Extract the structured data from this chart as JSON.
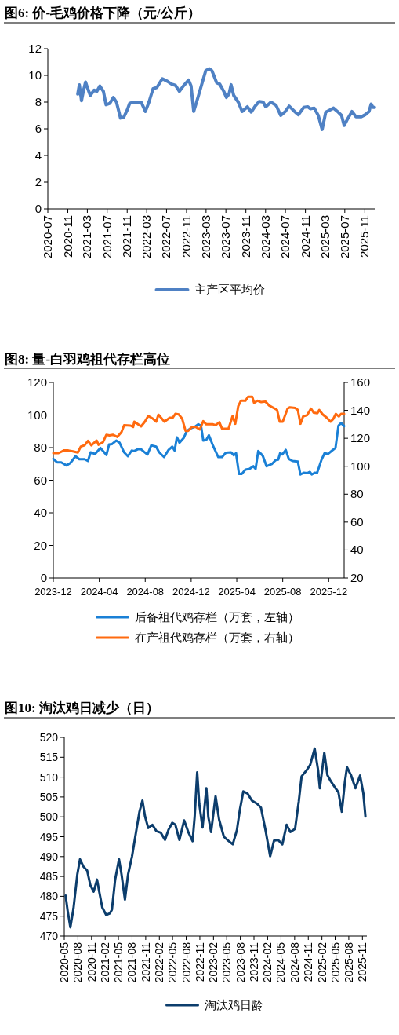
{
  "chart_data": [
    {
      "type": "line",
      "title": "图6: 价-毛鸡价格下降（元/公斤）",
      "legend": "bottom",
      "xlim": [
        "2020-07",
        "2026-01"
      ],
      "ylim": [
        0,
        12
      ],
      "yticks": [
        0,
        2,
        4,
        6,
        8,
        10,
        12
      ],
      "xticks": [
        "2020-07",
        "2020-11",
        "2021-03",
        "2021-07",
        "2021-11",
        "2022-03",
        "2022-07",
        "2022-11",
        "2023-03",
        "2023-07",
        "2023-11",
        "2024-03",
        "2024-07",
        "2024-11",
        "2025-03",
        "2025-07",
        "2025-11"
      ],
      "series": [
        {
          "name": "主产区平均价",
          "color": "#4f81c4",
          "x": [
            "2021-01-01",
            "2021-01-11",
            "2021-01-24",
            "2021-02-06",
            "2021-02-18",
            "2021-03-01",
            "2021-03-19",
            "2021-04-12",
            "2021-04-28",
            "2021-05-17",
            "2021-06-08",
            "2021-06-24",
            "2021-07-17",
            "2021-08-08",
            "2021-08-27",
            "2021-09-21",
            "2021-10-10",
            "2021-11-01",
            "2021-11-16",
            "2021-12-10",
            "2022-01-28",
            "2022-02-21",
            "2022-03-15",
            "2022-04-09",
            "2022-05-03",
            "2022-06-05",
            "2022-07-07",
            "2022-08-01",
            "2022-08-25",
            "2022-09-18",
            "2022-10-12",
            "2022-11-14",
            "2022-11-29",
            "2022-12-15",
            "2023-01-09",
            "2023-02-03",
            "2023-02-27",
            "2023-03-21",
            "2023-04-06",
            "2023-05-05",
            "2023-05-24",
            "2023-06-18",
            "2023-07-04",
            "2023-07-20",
            "2023-08-02",
            "2023-08-18",
            "2023-09-15",
            "2023-10-09",
            "2023-11-10",
            "2023-12-04",
            "2023-12-28",
            "2024-01-22",
            "2024-02-15",
            "2024-03-02",
            "2024-04-03",
            "2024-05-05",
            "2024-06-02",
            "2024-06-30",
            "2024-07-24",
            "2024-08-26",
            "2024-09-19",
            "2024-10-21",
            "2024-11-15",
            "2024-12-01",
            "2024-12-25",
            "2025-01-19",
            "2025-02-12",
            "2025-03-06",
            "2025-03-30",
            "2025-04-23",
            "2025-05-17",
            "2025-06-11",
            "2025-06-27",
            "2025-07-21",
            "2025-08-14",
            "2025-09-08",
            "2025-10-10",
            "2025-11-03",
            "2025-11-27",
            "2025-12-10",
            "2025-12-21",
            "2025-12-31"
          ],
          "values": [
            8.6,
            9.3,
            8.1,
            8.9,
            9.5,
            9.1,
            8.5,
            8.9,
            8.8,
            9.2,
            8.8,
            7.8,
            7.9,
            8.35,
            8.0,
            6.8,
            6.85,
            7.4,
            7.9,
            8.0,
            7.95,
            7.3,
            8.0,
            9.0,
            9.1,
            9.75,
            9.55,
            9.35,
            9.25,
            8.8,
            9.2,
            9.65,
            9.2,
            7.3,
            8.3,
            9.35,
            10.35,
            10.5,
            10.35,
            9.45,
            9.35,
            8.8,
            8.35,
            8.6,
            9.3,
            8.5,
            8.0,
            7.3,
            7.65,
            7.25,
            7.7,
            8.05,
            8.0,
            7.65,
            8.0,
            7.75,
            7.0,
            7.3,
            7.7,
            7.3,
            7.05,
            7.6,
            7.65,
            7.5,
            7.55,
            7.0,
            5.95,
            7.25,
            7.4,
            7.55,
            7.3,
            7.0,
            6.25,
            6.8,
            7.3,
            6.9,
            6.9,
            7.05,
            7.3,
            7.85,
            7.6,
            7.6
          ]
        }
      ]
    },
    {
      "type": "line",
      "title": "图8: 量-白羽鸡祖代存栏高位",
      "legend": "bottom",
      "xlim": [
        "2023-12-01",
        "2026-01-11"
      ],
      "ylim": [
        0,
        120
      ],
      "yticks": [
        0,
        20,
        40,
        60,
        80,
        100,
        120
      ],
      "y2lim": [
        20,
        160
      ],
      "y2ticks": [
        20,
        40,
        60,
        80,
        100,
        120,
        140,
        160
      ],
      "xticks": [
        "2023-12",
        "2024-04",
        "2024-08",
        "2024-12",
        "2025-04",
        "2025-08",
        "2025-12"
      ],
      "series": [
        {
          "name": "后备祖代鸡存栏（万套，左轴）",
          "color": "#1a80d6",
          "x": [
            "2023-12-01",
            "2023-12-11",
            "2023-12-22",
            "2024-01-05",
            "2024-01-15",
            "2024-01-29",
            "2024-02-08",
            "2024-02-22",
            "2024-03-02",
            "2024-03-09",
            "2024-03-21",
            "2024-04-04",
            "2024-04-20",
            "2024-04-27",
            "2024-05-05",
            "2024-05-16",
            "2024-05-25",
            "2024-06-06",
            "2024-06-16",
            "2024-06-26",
            "2024-07-03",
            "2024-07-12",
            "2024-07-21",
            "2024-07-29",
            "2024-08-07",
            "2024-08-17",
            "2024-08-30",
            "2024-09-07",
            "2024-09-20",
            "2024-10-02",
            "2024-10-12",
            "2024-10-18",
            "2024-10-24",
            "2024-10-31",
            "2024-11-11",
            "2024-11-19",
            "2024-11-28",
            "2024-12-10",
            "2024-12-20",
            "2024-12-27",
            "2025-01-02",
            "2025-01-10",
            "2025-01-17",
            "2025-01-28",
            "2025-02-11",
            "2025-02-21",
            "2025-03-03",
            "2025-03-17",
            "2025-03-24",
            "2025-03-30",
            "2025-04-07",
            "2025-04-14",
            "2025-04-24",
            "2025-05-05",
            "2025-05-15",
            "2025-05-21",
            "2025-05-28",
            "2025-06-09",
            "2025-06-19",
            "2025-07-03",
            "2025-07-13",
            "2025-07-20",
            "2025-07-25",
            "2025-07-31",
            "2025-08-09",
            "2025-08-17",
            "2025-08-27",
            "2025-09-10",
            "2025-09-17",
            "2025-09-26",
            "2025-10-05",
            "2025-10-12",
            "2025-10-17",
            "2025-10-25",
            "2025-10-31",
            "2025-11-12",
            "2025-11-20",
            "2025-11-29",
            "2025-12-10",
            "2025-12-19",
            "2025-12-27",
            "2026-01-03",
            "2026-01-11"
          ],
          "values": [
            73.1,
            71.0,
            71.0,
            69.1,
            70.5,
            74.7,
            72.9,
            72.9,
            71.8,
            77.1,
            76.1,
            79.8,
            75.5,
            81.9,
            82.2,
            84.3,
            83.0,
            77.1,
            74.7,
            78.2,
            77.9,
            79.0,
            79.0,
            77.4,
            75.8,
            81.4,
            80.6,
            77.1,
            74.2,
            78.6,
            80.6,
            78.2,
            86.3,
            83.0,
            85.9,
            90.0,
            91.6,
            92.7,
            94.3,
            93.5,
            84.3,
            84.7,
            87.6,
            81.1,
            74.2,
            74.2,
            76.9,
            77.1,
            75.3,
            76.6,
            63.8,
            63.8,
            66.5,
            67.0,
            68.6,
            67.0,
            77.9,
            75.0,
            68.6,
            69.9,
            72.3,
            72.6,
            76.6,
            75.8,
            78.6,
            73.1,
            71.8,
            71.5,
            63.5,
            64.6,
            64.3,
            65.1,
            63.5,
            64.6,
            64.3,
            72.6,
            76.6,
            76.1,
            78.2,
            79.8,
            93.5,
            95.1,
            93.2
          ]
        },
        {
          "name": "在产祖代鸡存栏（万套，右轴）",
          "color": "#ff6a0f",
          "axis": "y2",
          "x": [
            "2023-12-01",
            "2023-12-15",
            "2023-12-29",
            "2024-01-10",
            "2024-01-22",
            "2024-02-04",
            "2024-02-12",
            "2024-02-22",
            "2024-03-02",
            "2024-03-11",
            "2024-03-25",
            "2024-03-30",
            "2024-04-11",
            "2024-04-20",
            "2024-04-28",
            "2024-05-07",
            "2024-05-19",
            "2024-05-30",
            "2024-06-06",
            "2024-06-23",
            "2024-06-30",
            "2024-07-03",
            "2024-07-21",
            "2024-07-31",
            "2024-08-09",
            "2024-08-21",
            "2024-08-30",
            "2024-09-05",
            "2024-09-21",
            "2024-10-05",
            "2024-10-13",
            "2024-10-20",
            "2024-10-29",
            "2024-11-07",
            "2024-11-16",
            "2024-11-23",
            "2024-12-03",
            "2024-12-13",
            "2024-12-24",
            "2025-01-02",
            "2025-01-10",
            "2025-01-28",
            "2025-02-04",
            "2025-02-14",
            "2025-02-21",
            "2025-03-10",
            "2025-03-21",
            "2025-03-28",
            "2025-04-05",
            "2025-04-12",
            "2025-04-24",
            "2025-05-01",
            "2025-05-12",
            "2025-05-17",
            "2025-05-26",
            "2025-06-05",
            "2025-06-16",
            "2025-06-26",
            "2025-07-17",
            "2025-07-24",
            "2025-08-01",
            "2025-08-14",
            "2025-08-20",
            "2025-09-03",
            "2025-09-10",
            "2025-09-17",
            "2025-09-24",
            "2025-10-05",
            "2025-10-15",
            "2025-10-22",
            "2025-11-01",
            "2025-11-06",
            "2025-11-15",
            "2025-11-26",
            "2025-12-06",
            "2025-12-13",
            "2025-12-20",
            "2025-12-28",
            "2026-01-03",
            "2026-01-11"
          ],
          "values": [
            109.4,
            109.4,
            111.3,
            111.3,
            110.7,
            109.8,
            114.1,
            115.0,
            118.2,
            115.0,
            118.4,
            115.4,
            117.3,
            122.5,
            122.1,
            122.5,
            121.0,
            124.4,
            129.4,
            129.1,
            128.1,
            131.9,
            128.5,
            131.9,
            136.0,
            134.1,
            131.9,
            136.9,
            131.9,
            134.7,
            134.7,
            137.5,
            137.1,
            134.1,
            125.3,
            125.3,
            128.1,
            128.1,
            126.3,
            132.3,
            130.0,
            130.0,
            129.4,
            131.5,
            126.8,
            126.8,
            136.0,
            130.4,
            143.1,
            146.9,
            146.9,
            149.7,
            149.7,
            145.4,
            146.9,
            145.9,
            146.3,
            143.5,
            140.3,
            131.9,
            131.9,
            141.3,
            142.2,
            141.7,
            140.3,
            130.4,
            135.6,
            136.6,
            141.3,
            138.4,
            137.9,
            140.3,
            137.1,
            134.7,
            131.9,
            133.8,
            137.5,
            135.6,
            137.5,
            137.5
          ]
        }
      ]
    },
    {
      "type": "line",
      "title": "图10: 淘汰鸡日减少（日）",
      "legend": "bottom",
      "xlim": [
        "2020-05",
        "2025-12"
      ],
      "ylim": [
        470,
        520
      ],
      "yticks": [
        470,
        475,
        480,
        485,
        490,
        495,
        500,
        505,
        510,
        515,
        520
      ],
      "xticks": [
        "2020-05",
        "2020-08",
        "2020-11",
        "2021-02",
        "2021-05",
        "2021-08",
        "2021-11",
        "2022-02",
        "2022-05",
        "2022-08",
        "2022-11",
        "2023-02",
        "2023-05",
        "2023-08",
        "2023-11",
        "2024-02",
        "2024-05",
        "2024-08",
        "2024-11",
        "2025-02",
        "2025-05",
        "2025-08",
        "2025-11"
      ],
      "series": [
        {
          "name": "淘汰鸡日龄",
          "color": "#0c3d6c",
          "x": [
            "2020-05-10",
            "2020-05-24",
            "2020-06-11",
            "2020-07-02",
            "2020-07-28",
            "2020-08-15",
            "2020-09-07",
            "2020-10-02",
            "2020-10-24",
            "2020-11-15",
            "2020-12-08",
            "2020-12-21",
            "2021-01-12",
            "2021-02-08",
            "2021-03-04",
            "2021-03-18",
            "2021-04-09",
            "2021-05-05",
            "2021-05-22",
            "2021-06-14",
            "2021-07-05",
            "2021-08-01",
            "2021-08-27",
            "2021-09-20",
            "2021-10-10",
            "2021-10-28",
            "2021-11-18",
            "2021-12-16",
            "2022-01-12",
            "2022-02-11",
            "2022-03-11",
            "2022-04-03",
            "2022-04-29",
            "2022-05-20",
            "2022-06-16",
            "2022-07-18",
            "2022-08-17",
            "2022-09-13",
            "2022-09-27",
            "2022-10-14",
            "2022-10-28",
            "2022-11-19",
            "2022-12-15",
            "2022-12-28",
            "2023-01-16",
            "2023-02-15",
            "2023-03-11",
            "2023-04-12",
            "2023-05-12",
            "2023-06-11",
            "2023-07-09",
            "2023-07-28",
            "2023-08-21",
            "2023-09-18",
            "2023-10-18",
            "2023-11-22",
            "2023-12-18",
            "2024-01-19",
            "2024-02-18",
            "2024-03-15",
            "2024-04-11",
            "2024-05-10",
            "2024-06-08",
            "2024-07-03",
            "2024-08-04",
            "2024-08-29",
            "2024-09-17",
            "2024-10-22",
            "2024-11-14",
            "2024-12-14",
            "2025-01-06",
            "2025-01-18",
            "2025-02-17",
            "2025-03-10",
            "2025-04-03",
            "2025-04-28",
            "2025-05-23",
            "2025-06-15",
            "2025-07-06",
            "2025-07-20",
            "2025-08-16",
            "2025-09-15",
            "2025-10-16",
            "2025-11-07",
            "2025-11-21"
          ],
          "values": [
            480.2,
            476.3,
            472.2,
            476.9,
            485.5,
            489.3,
            487.5,
            486.5,
            482.8,
            481.2,
            484.2,
            481.5,
            477.2,
            475.3,
            475.7,
            476.6,
            484.2,
            489.3,
            485.5,
            479.2,
            485.5,
            490.1,
            496.0,
            501.3,
            504.1,
            500.0,
            497.2,
            498.0,
            496.4,
            496.0,
            494.2,
            496.7,
            498.5,
            498.0,
            494.2,
            499.1,
            496.0,
            493.9,
            500.0,
            511.2,
            503.3,
            497.3,
            507.2,
            500.0,
            496.2,
            505.2,
            499.3,
            495.0,
            494.0,
            493.1,
            496.7,
            501.6,
            506.4,
            505.9,
            504.1,
            503.3,
            502.3,
            496.4,
            490.1,
            494.0,
            494.2,
            493.1,
            498.0,
            496.2,
            497.0,
            503.9,
            510.2,
            511.8,
            513.1,
            517.2,
            511.8,
            507.2,
            516.1,
            510.5,
            508.9,
            507.5,
            506.2,
            501.3,
            508.9,
            512.5,
            510.5,
            507.2,
            510.4,
            505.9,
            500.1
          ]
        }
      ]
    }
  ]
}
